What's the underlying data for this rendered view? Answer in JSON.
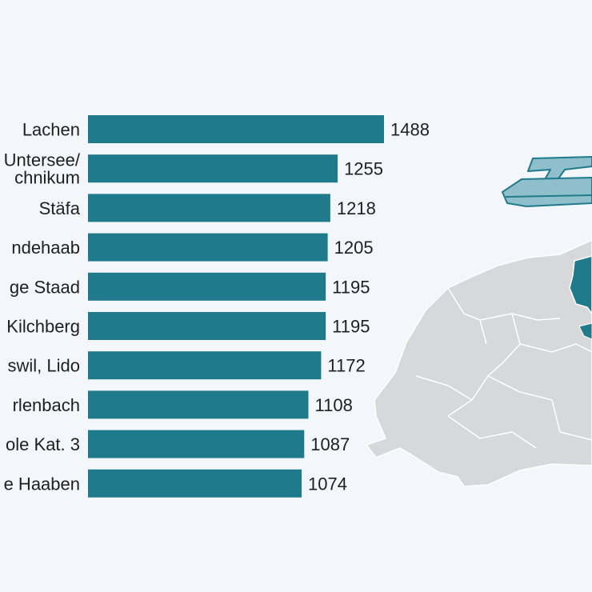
{
  "colors": {
    "background": "#f3f6fb",
    "bar": "#1f7a8c",
    "map_land": "#d7d8da",
    "map_border": "#ffffff",
    "map_highlight": "#1f7a8c",
    "boat_light": "#8fbfcb",
    "boat_dark": "#1f7a8c"
  },
  "icons": {
    "boat": "ferry-boat-icon",
    "map": "switzerland-map-icon"
  },
  "chart_data": {
    "type": "bar",
    "orientation": "horizontal",
    "categories": [
      [
        "Lachen"
      ],
      [
        "Untersee/",
        "chnikum"
      ],
      [
        "Stäfa"
      ],
      [
        "ndehaab"
      ],
      [
        "ge Staad"
      ],
      [
        "Kilchberg"
      ],
      [
        "swil, Lido"
      ],
      [
        "rlenbach"
      ],
      [
        "ole Kat. 3"
      ],
      [
        "e Haaben"
      ]
    ],
    "values": [
      1488,
      1255,
      1218,
      1205,
      1195,
      1195,
      1172,
      1108,
      1087,
      1074
    ],
    "title": "",
    "xlabel": "",
    "ylabel": "",
    "xlim": [
      0,
      1488
    ],
    "grid": false,
    "legend": "none",
    "data_labels": true
  }
}
